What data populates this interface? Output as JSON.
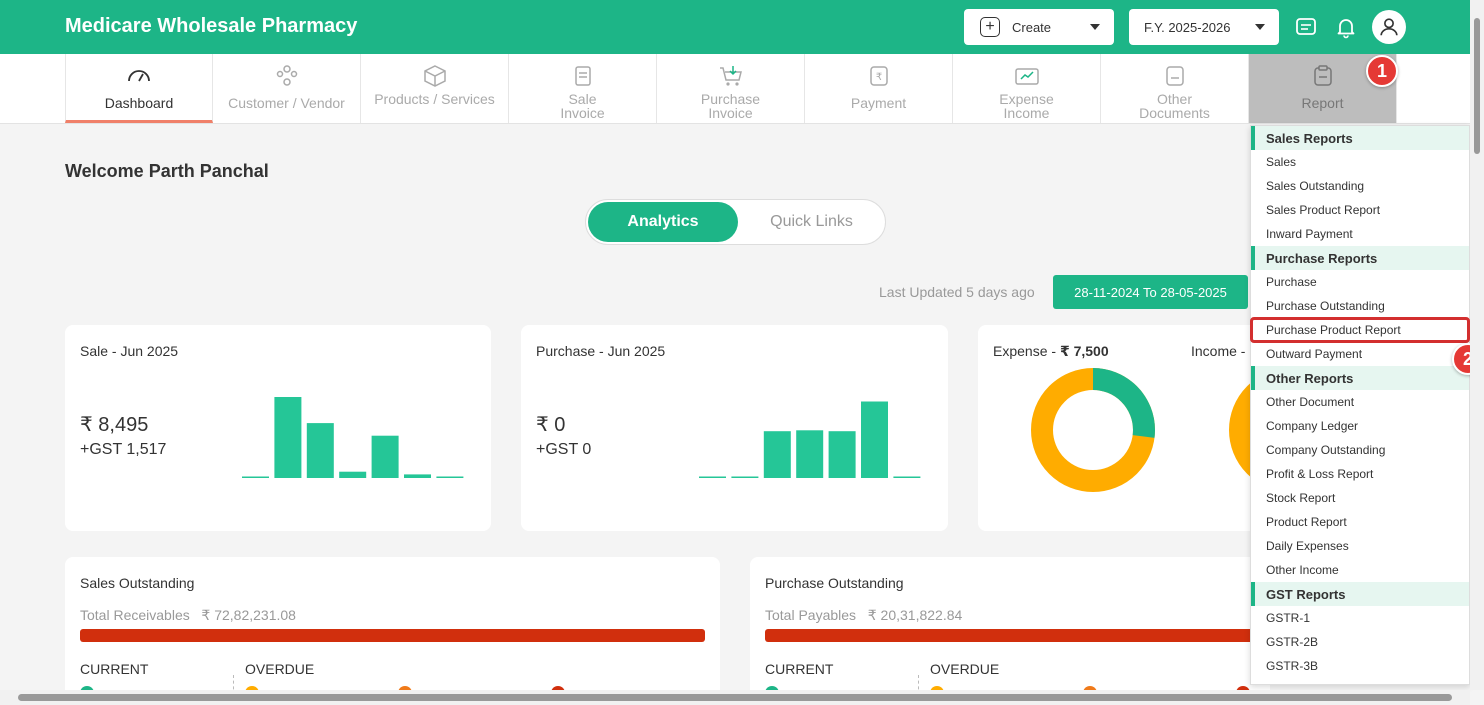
{
  "app": {
    "title": "Medicare Wholesale Pharmacy"
  },
  "header": {
    "create_label": "Create",
    "fy_label": "F.Y. 2025-2026",
    "icons": [
      "message-icon",
      "bell-icon",
      "user-avatar-icon"
    ]
  },
  "nav": {
    "items": [
      {
        "label": "Dashboard",
        "icon": "speedometer-icon"
      },
      {
        "label": "Customer / Vendor",
        "icon": "people-icon"
      },
      {
        "label": "Products / Services",
        "icon": "box-icon"
      },
      {
        "label": "Sale\nInvoice",
        "icon": "invoice-icon"
      },
      {
        "label": "Purchase\nInvoice",
        "icon": "cart-icon"
      },
      {
        "label": "Payment",
        "icon": "rupee-note-icon"
      },
      {
        "label": "Expense\nIncome",
        "icon": "wallet-icon"
      },
      {
        "label": "Other\nDocuments",
        "icon": "document-icon"
      },
      {
        "label": "Report",
        "icon": "clipboard-icon"
      }
    ]
  },
  "annotations": {
    "badge1": "1",
    "badge2": "2"
  },
  "welcome": "Welcome Parth Panchal",
  "tabs": {
    "analytics": "Analytics",
    "quick_links": "Quick Links"
  },
  "last_updated": "Last Updated 5 days ago",
  "date_range": "28-11-2024 To 28-05-2025",
  "sale_card": {
    "title": "Sale - Jun 2025",
    "amount": "₹ 8,495",
    "gst": "+GST 1,517",
    "bars": [
      0.5,
      90,
      61,
      7,
      47,
      4,
      1
    ]
  },
  "purchase_card": {
    "title": "Purchase - Jun 2025",
    "amount": "₹ 0",
    "gst": "+GST 0",
    "bars": [
      1,
      1,
      52,
      53,
      52,
      85,
      1
    ]
  },
  "expense_card": {
    "expense_label": "Expense - ",
    "expense_value": "₹ 7,500",
    "income_label": "Income -",
    "expense_share": 0.27
  },
  "sales_outstanding": {
    "title": "Sales Outstanding",
    "total_label": "Total Receivables",
    "total_value": "₹ 72,82,231.08",
    "current": "CURRENT",
    "overdue": "OVERDUE"
  },
  "purchase_outstanding": {
    "title": "Purchase Outstanding",
    "total_label": "Total Payables",
    "total_value": "₹ 20,31,822.84",
    "current": "CURRENT",
    "overdue": "OVERDUE"
  },
  "report_menu": {
    "sections": [
      {
        "title": "Sales Reports",
        "items": [
          "Sales",
          "Sales Outstanding",
          "Sales Product Report",
          "Inward Payment"
        ]
      },
      {
        "title": "Purchase Reports",
        "items": [
          "Purchase",
          "Purchase Outstanding",
          "Purchase Product Report",
          "Outward Payment"
        ]
      },
      {
        "title": "Other Reports",
        "items": [
          "Other Document",
          "Company Ledger",
          "Company Outstanding",
          "Profit & Loss Report",
          "Stock Report",
          "Product Report",
          "Daily Expenses",
          "Other Income"
        ]
      },
      {
        "title": "GST Reports",
        "items": [
          "GSTR-1",
          "GSTR-2B",
          "GSTR-3B"
        ]
      }
    ],
    "highlighted": "Purchase Product Report"
  },
  "colors": {
    "brand": "#1db587",
    "overdue_bar": "#d12f0d",
    "donut_orange": "#ffac00",
    "badge": "#e53935"
  }
}
